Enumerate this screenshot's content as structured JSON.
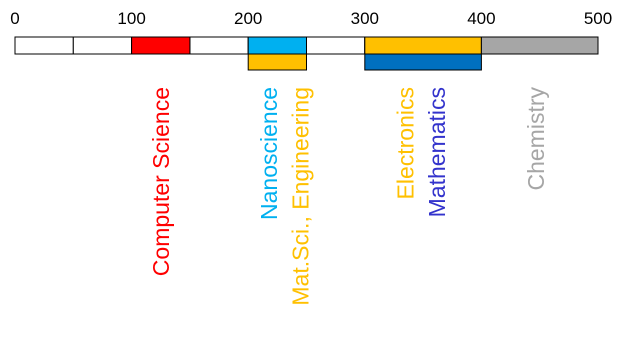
{
  "diagram": {
    "scale": {
      "min": 0,
      "max": 500,
      "cell_size": 50,
      "tick_values": [
        0,
        100,
        200,
        300,
        400,
        500
      ],
      "tick_labels": [
        "0",
        "100",
        "200",
        "300",
        "400",
        "500"
      ]
    },
    "top_segments": [
      {
        "from": 100,
        "to": 150,
        "color": "#ff0000"
      },
      {
        "from": 200,
        "to": 250,
        "color": "#00b0f0"
      },
      {
        "from": 300,
        "to": 400,
        "color": "#ffc000"
      },
      {
        "from": 400,
        "to": 500,
        "color": "#a6a6a6"
      }
    ],
    "bottom_segments": [
      {
        "from": 200,
        "to": 250,
        "color": "#ffc000"
      },
      {
        "from": 300,
        "to": 400,
        "color": "#0070c0"
      }
    ],
    "labels": [
      {
        "text": "Computer Science",
        "anchor": 125,
        "color": "#ff0000"
      },
      {
        "text": "Nanoscience",
        "anchor": 218,
        "color": "#00b0f0"
      },
      {
        "text": "Mat.Sci., Engineering",
        "anchor": 245,
        "color": "#ffc000"
      },
      {
        "text": "Electronics",
        "anchor": 335,
        "color": "#ffc000"
      },
      {
        "text": "Mathematics",
        "anchor": 362,
        "color": "#3333cc"
      },
      {
        "text": "Chemistry",
        "anchor": 447,
        "color": "#a6a6a6"
      }
    ]
  }
}
